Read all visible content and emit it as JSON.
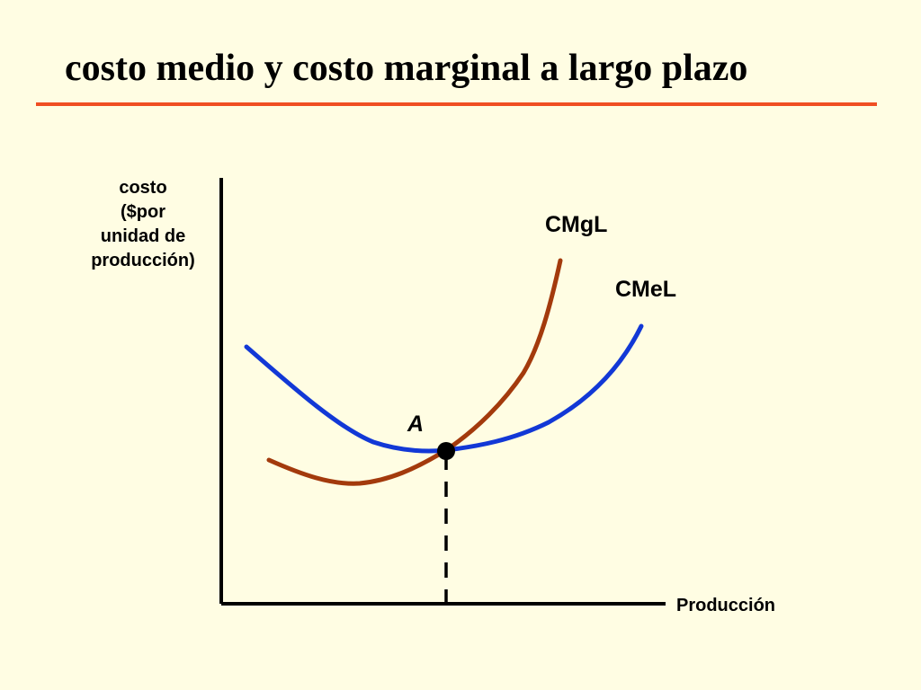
{
  "title": "costo medio y costo marginal a largo plazo",
  "colors": {
    "background": "#FFFDE3",
    "title_rule": "#F04E23",
    "lmc_curve": "#A33A0C",
    "lac_curve": "#1238D6",
    "axis": "#000000"
  },
  "axes": {
    "y_label_lines": [
      "costo",
      "($por",
      "unidad de",
      "producción)"
    ],
    "x_label": "Producción"
  },
  "curves": {
    "lmc_label": "CMgL",
    "lac_label": "CMeL"
  },
  "point": {
    "label": "A"
  }
}
